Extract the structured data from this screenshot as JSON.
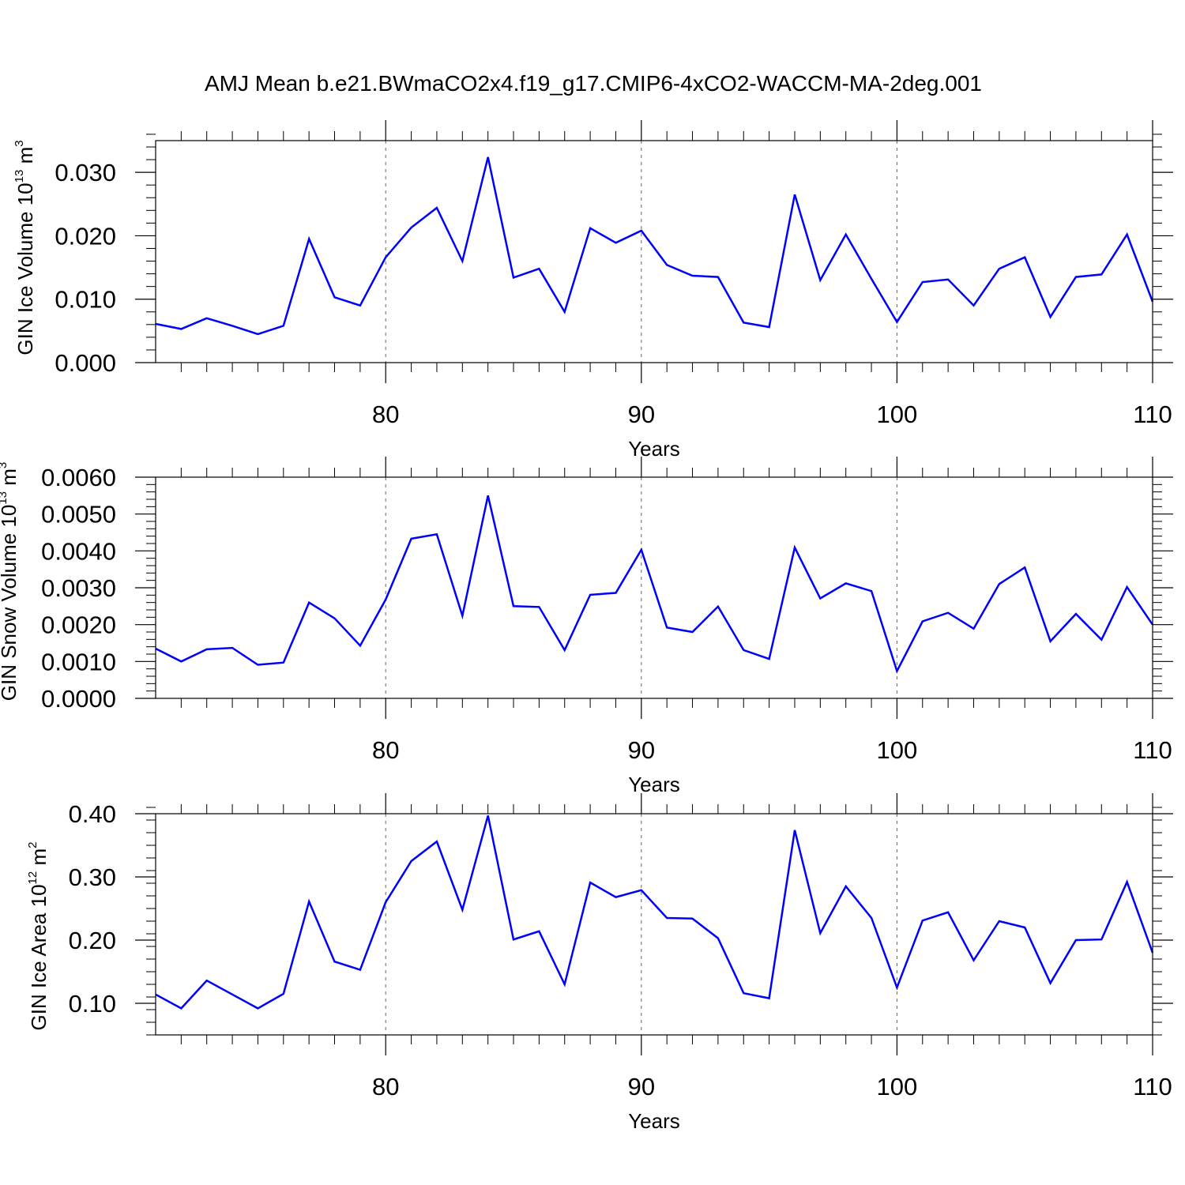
{
  "chart_data": {
    "title": "AMJ Mean b.e21.BWmaCO2x4.f19_g17.CMIP6-4xCO2-WACCM-MA-2deg.001",
    "line_color": "#0000ff",
    "x": [
      71,
      72,
      73,
      74,
      75,
      76,
      77,
      78,
      79,
      80,
      81,
      82,
      83,
      84,
      85,
      86,
      87,
      88,
      89,
      90,
      91,
      92,
      93,
      94,
      95,
      96,
      97,
      98,
      99,
      100,
      101,
      102,
      103,
      104,
      105,
      106,
      107,
      108,
      109,
      110
    ],
    "xlim": [
      71,
      110
    ],
    "x_major_ticks": [
      80,
      90,
      100,
      110
    ],
    "x_tick_labels": [
      "80",
      "90",
      "100",
      "110"
    ],
    "x_minor_step": 1,
    "vertical_grid_at": [
      80,
      90,
      100
    ],
    "panels": [
      {
        "type": "line",
        "ylabel": "GIN Ice Volume 10",
        "ylabel_exp": "13",
        "ylabel_unit": " m",
        "ylabel_unit_exp": "3",
        "xlabel": "Years",
        "ylim": [
          0,
          0.035
        ],
        "y_ticks": [
          0,
          0.01,
          0.02,
          0.03
        ],
        "y_tick_labels": [
          "0.000",
          "0.010",
          "0.020",
          "0.030"
        ],
        "y_minor_step": 0.002,
        "values": [
          0.0061,
          0.0053,
          0.007,
          0.0058,
          0.0045,
          0.0058,
          0.0195,
          0.0103,
          0.009,
          0.0166,
          0.0213,
          0.0244,
          0.016,
          0.0324,
          0.0134,
          0.0148,
          0.008,
          0.0212,
          0.0189,
          0.0208,
          0.0154,
          0.0137,
          0.0135,
          0.0063,
          0.0056,
          0.0265,
          0.013,
          0.0202,
          0.0132,
          0.0064,
          0.0127,
          0.0131,
          0.009,
          0.0148,
          0.0166,
          0.0072,
          0.0135,
          0.0139,
          0.0202,
          0.0096
        ]
      },
      {
        "type": "line",
        "ylabel": "GIN Snow Volume 10",
        "ylabel_exp": "13",
        "ylabel_unit": " m",
        "ylabel_unit_exp": "3",
        "xlabel": "Years",
        "ylim": [
          0,
          0.006
        ],
        "y_ticks": [
          0,
          0.001,
          0.002,
          0.003,
          0.004,
          0.005,
          0.006
        ],
        "y_tick_labels": [
          "0.0000",
          "0.0010",
          "0.0020",
          "0.0030",
          "0.0040",
          "0.0050",
          "0.0060"
        ],
        "y_minor_step": 0.0002,
        "values": [
          0.00135,
          0.001,
          0.00133,
          0.00137,
          0.00091,
          0.00097,
          0.0026,
          0.00217,
          0.00143,
          0.00268,
          0.00433,
          0.00445,
          0.00224,
          0.0055,
          0.0025,
          0.00248,
          0.00131,
          0.00281,
          0.00286,
          0.00403,
          0.00192,
          0.0018,
          0.00249,
          0.00131,
          0.00107,
          0.00409,
          0.00271,
          0.00312,
          0.00291,
          0.00074,
          0.00209,
          0.00232,
          0.00189,
          0.0031,
          0.00355,
          0.00155,
          0.00229,
          0.00159,
          0.00302,
          0.002
        ]
      },
      {
        "type": "line",
        "ylabel": "GIN Ice Area 10",
        "ylabel_exp": "12",
        "ylabel_unit": " m",
        "ylabel_unit_exp": "2",
        "xlabel": "Years",
        "ylim": [
          0.05,
          0.4
        ],
        "y_ticks": [
          0.1,
          0.2,
          0.3,
          0.4
        ],
        "y_tick_labels": [
          "0.10",
          "0.20",
          "0.30",
          "0.40"
        ],
        "y_minor_step": 0.02,
        "values": [
          0.114,
          0.092,
          0.136,
          0.114,
          0.092,
          0.115,
          0.261,
          0.166,
          0.153,
          0.26,
          0.325,
          0.356,
          0.248,
          0.397,
          0.201,
          0.214,
          0.13,
          0.291,
          0.268,
          0.279,
          0.235,
          0.234,
          0.203,
          0.116,
          0.108,
          0.374,
          0.211,
          0.285,
          0.235,
          0.125,
          0.231,
          0.244,
          0.168,
          0.23,
          0.22,
          0.132,
          0.2,
          0.201,
          0.292,
          0.18
        ]
      }
    ]
  }
}
